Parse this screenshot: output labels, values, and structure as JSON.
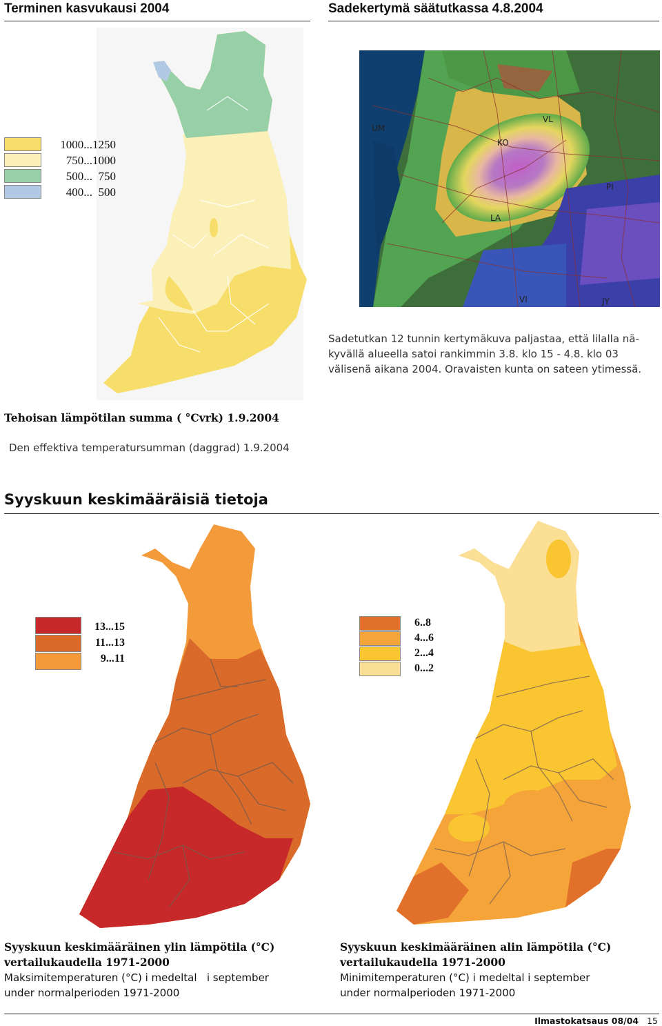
{
  "top_left": {
    "title": "Terminen kasvukausi 2004",
    "legend": [
      {
        "label": "1000...1250",
        "color": "#f7dd6a"
      },
      {
        "label": "750...1000",
        "color": "#fbf0b8"
      },
      {
        "label": "500...  750",
        "color": "#97cfa7"
      },
      {
        "label": "400...  500",
        "color": "#b1c9e3"
      }
    ],
    "caption_fi": "Tehoisan lämpötilan summa ( °Cvrk)  1.9.2004",
    "caption_sv": "Den effektiva temperatursumman (daggrad) 1.9.2004"
  },
  "top_right": {
    "title": "Sadekertymä säätutkassa 4.8.2004",
    "radar_labels": [
      "UM",
      "KO",
      "VL",
      "PI",
      "LA",
      "VI",
      "JY"
    ],
    "caption_lines": [
      "Sadetutkan 12 tunnin kertymäkuva paljastaa, että lilalla nä-",
      "kyvällä alueella satoi rankimmin 3.8. klo 15 - 4.8. klo 03",
      "välisenä aikana 2004. Oravaisten kunta on sateen ytimessä."
    ]
  },
  "section": {
    "title": "Syyskuun keskimääräisiä tietoja"
  },
  "bottom_left": {
    "legend": [
      {
        "label": "13...15",
        "color": "#c7282a"
      },
      {
        "label": "11...13",
        "color": "#da6a29"
      },
      {
        "label": "9...11",
        "color": "#f39a3b"
      }
    ],
    "caption_bold_1": "Syyskuun keskimääräinen ylin lämpötila (°C)",
    "caption_bold_2": "vertailukaudella 1971-2000",
    "caption_sv_1": "Maksimitemperaturen (°C) i medeltal   i september",
    "caption_sv_2": "under normalperioden 1971-2000"
  },
  "bottom_right": {
    "legend": [
      {
        "label": "6..8",
        "color": "#e0702a"
      },
      {
        "label": "4...6",
        "color": "#f5a439"
      },
      {
        "label": "2...4",
        "color": "#f9c531"
      },
      {
        "label": "0...2",
        "color": "#fadf95"
      }
    ],
    "caption_bold_1": "Syyskuun keskimääräinen alin lämpötila (°C)",
    "caption_bold_2": "vertailukaudella 1971-2000",
    "caption_sv_1": "Minimitemperaturen (°C) i medeltal i september",
    "caption_sv_2": "under normalperioden 1971-2000"
  },
  "footer": {
    "publication": "Ilmastokatsaus 08/04",
    "page": "15"
  }
}
